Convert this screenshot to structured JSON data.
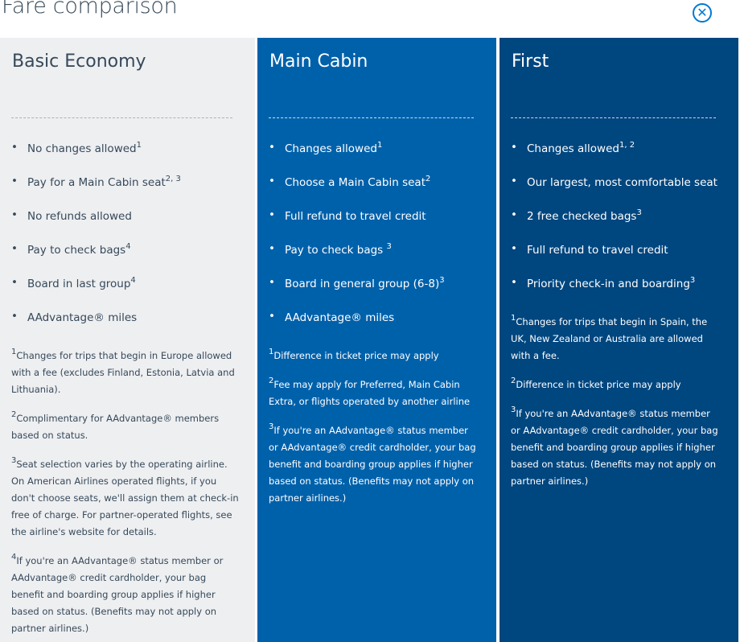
{
  "title": "Fare comparison",
  "close_icon": "circle-x-icon",
  "colors": {
    "basic": "#eeeff1",
    "main": "#0061ab",
    "first": "#00467f",
    "accent": "#0078d2"
  },
  "columns": [
    {
      "name": "Basic Economy",
      "items": [
        {
          "text": "No changes allowed",
          "sup": "1"
        },
        {
          "text": "Pay for a Main Cabin seat",
          "sup": "2, 3"
        },
        {
          "text": "No refunds allowed",
          "sup": ""
        },
        {
          "text": "Pay to check bags",
          "sup": "4"
        },
        {
          "text": "Board in last group",
          "sup": "4"
        },
        {
          "text": "AAdvantage® miles",
          "sup": ""
        }
      ],
      "footnotes": [
        {
          "n": "1",
          "text": "Changes for trips that begin in Europe allowed with a fee (excludes Finland, Estonia, Latvia and Lithuania)."
        },
        {
          "n": "2",
          "text": "Complimentary for AAdvantage® members based on status."
        },
        {
          "n": "3",
          "text": "Seat selection varies by the operating airline. On American Airlines operated flights, if you don't choose seats, we'll assign them at check-in free of charge. For partner-operated flights, see the airline's website for details."
        },
        {
          "n": "4",
          "text": "If you're an AAdvantage® status member or AAdvantage® credit cardholder, your bag benefit and boarding group applies if higher based on status. (Benefits may not apply on partner airlines.)"
        }
      ]
    },
    {
      "name": "Main Cabin",
      "items": [
        {
          "text": "Changes allowed",
          "sup": "1"
        },
        {
          "text": "Choose a Main Cabin seat",
          "sup": "2"
        },
        {
          "text": "Full refund to travel credit",
          "sup": ""
        },
        {
          "text": "Pay to check bags ",
          "sup": "3"
        },
        {
          "text": "Board in general group (6-8)",
          "sup": "3"
        },
        {
          "text": "AAdvantage® miles",
          "sup": ""
        }
      ],
      "footnotes": [
        {
          "n": "1",
          "text": "Difference in ticket price may apply"
        },
        {
          "n": "2",
          "text": "Fee may apply for Preferred, Main Cabin Extra, or flights operated by another airline"
        },
        {
          "n": "3",
          "text": "If you're an AAdvantage® status member or AAdvantage® credit cardholder, your bag benefit and boarding group applies if higher based on status. (Benefits may not apply on partner airlines.)"
        }
      ]
    },
    {
      "name": "First",
      "items": [
        {
          "text": "Changes allowed",
          "sup": "1, 2"
        },
        {
          "text": "Our largest, most comfortable seat",
          "sup": ""
        },
        {
          "text": "2 free checked bags",
          "sup": "3"
        },
        {
          "text": "Full refund to travel credit",
          "sup": ""
        },
        {
          "text": "Priority check-in and boarding",
          "sup": "3"
        }
      ],
      "footnotes": [
        {
          "n": "1",
          "text": "Changes for trips that begin in Spain, the UK, New Zealand or Australia are allowed with a fee."
        },
        {
          "n": "2",
          "text": "Difference in ticket price may apply"
        },
        {
          "n": "3",
          "text": "If you're an AAdvantage® status member or AAdvantage® credit cardholder, your bag benefit and boarding group applies if higher based on status. (Benefits may not apply on partner airlines.)"
        }
      ]
    }
  ]
}
